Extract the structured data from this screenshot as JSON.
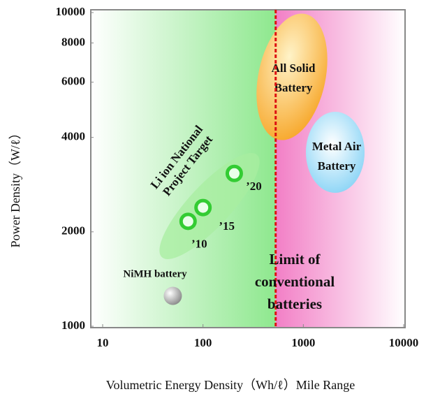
{
  "chart_data": {
    "type": "scatter",
    "x_label": "Volumetric Energy Density（Wh/ℓ）Mile Range",
    "y_label": "Power Density（W/ℓ）",
    "xscale": "log",
    "yscale": "log",
    "xlim": [
      10,
      10000
    ],
    "ylim": [
      1000,
      10000
    ],
    "xticks": [
      10,
      100,
      1000,
      10000
    ],
    "yticks": [
      1000,
      2000,
      4000,
      6000,
      8000,
      10000
    ],
    "series": [
      {
        "name": "NiMH battery",
        "color": "#9a9a9a",
        "x": [
          50
        ],
        "values": [
          1250
        ]
      },
      {
        "name": [
          "Li ion National",
          "Project Target"
        ],
        "color": "#33cc33",
        "x": [
          71,
          100,
          205
        ],
        "values": [
          2160,
          2390,
          3070
        ],
        "point_labels": [
          "’10",
          "’15",
          "’20"
        ]
      }
    ],
    "limit_line": {
      "x": 530,
      "color": "#dd1111",
      "label": [
        "Limit of",
        "conventional",
        "batteries"
      ]
    },
    "regions": [
      {
        "label": [
          "All Solid",
          "Battery"
        ],
        "color": "#f7a72a"
      },
      {
        "label": [
          "Metal Air",
          "Battery"
        ],
        "color": "#7fd0f5"
      }
    ]
  }
}
